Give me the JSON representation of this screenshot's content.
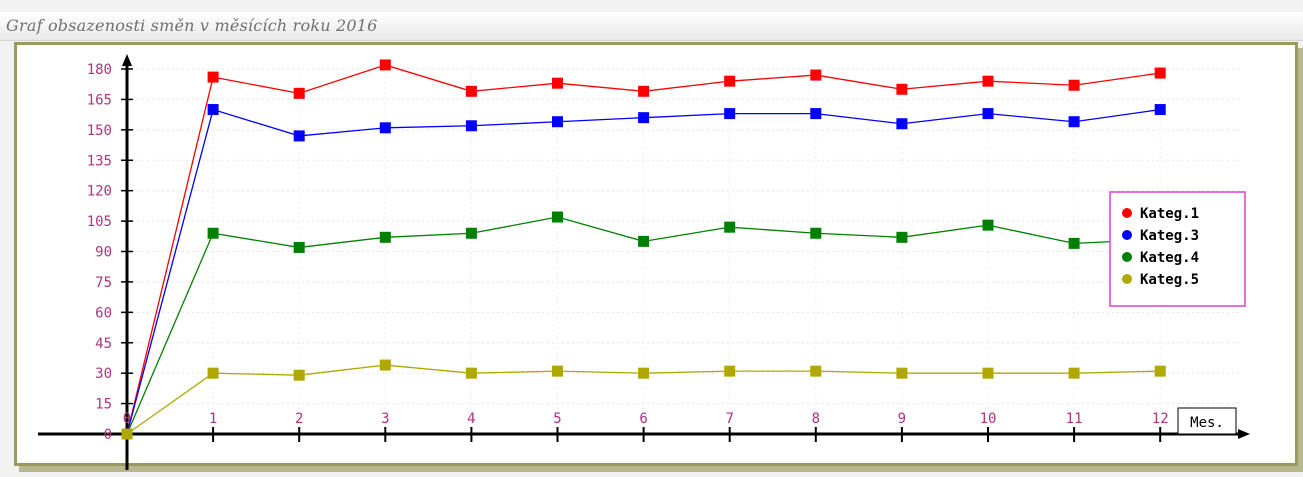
{
  "title": "Graf obsazenosti směn v měsících roku 2016",
  "chart_data": {
    "type": "line",
    "title": "Graf obsazenosti směn v měsících roku 2016",
    "xlabel": "Mes.",
    "ylabel": "",
    "x": [
      0,
      1,
      2,
      3,
      4,
      5,
      6,
      7,
      8,
      9,
      10,
      11,
      12
    ],
    "ylim": [
      0,
      180
    ],
    "yticks": [
      0,
      15,
      30,
      45,
      60,
      75,
      90,
      105,
      120,
      135,
      150,
      165,
      180
    ],
    "grid": true,
    "legend_position": "right",
    "series": [
      {
        "name": "Kateg.1",
        "color": "#ff0000",
        "values": [
          0,
          176,
          168,
          182,
          169,
          173,
          169,
          174,
          177,
          170,
          174,
          172,
          178
        ]
      },
      {
        "name": "Kateg.3",
        "color": "#0000ff",
        "values": [
          0,
          160,
          147,
          151,
          152,
          154,
          156,
          158,
          158,
          153,
          158,
          154,
          160
        ]
      },
      {
        "name": "Kateg.4",
        "color": "#008000",
        "values": [
          0,
          99,
          92,
          97,
          99,
          107,
          95,
          102,
          99,
          97,
          103,
          94,
          96
        ]
      },
      {
        "name": "Kateg.5",
        "color": "#b0a800",
        "values": [
          0,
          30,
          29,
          34,
          30,
          31,
          30,
          31,
          31,
          30,
          30,
          30,
          31
        ]
      }
    ]
  }
}
